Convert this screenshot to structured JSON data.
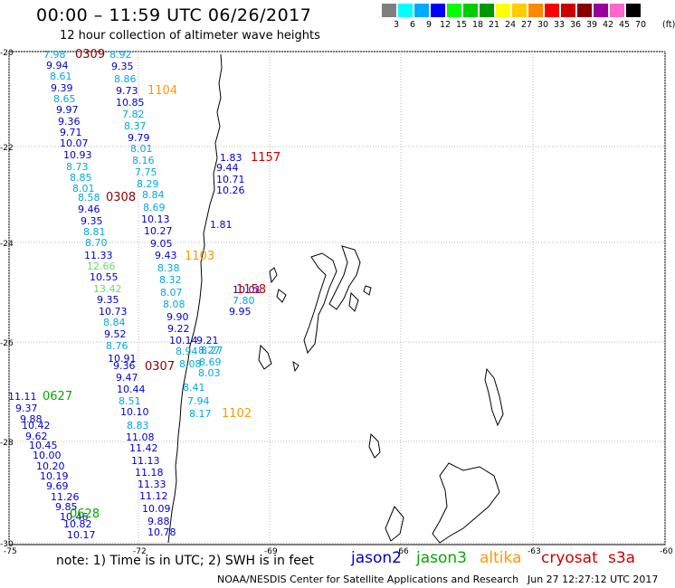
{
  "header": {
    "title": "00:00 – 11:59 UTC 06/26/2017",
    "subtitle": "12 hour collection of altimeter wave heights"
  },
  "legend": {
    "unit": "(ft)",
    "bins": [
      {
        "label": "3",
        "color": "#7f7f7f"
      },
      {
        "label": "6",
        "color": "#00ffff"
      },
      {
        "label": "9",
        "color": "#00aaff"
      },
      {
        "label": "12",
        "color": "#0000ff"
      },
      {
        "label": "15",
        "color": "#00ff00"
      },
      {
        "label": "18",
        "color": "#00cc00"
      },
      {
        "label": "21",
        "color": "#009900"
      },
      {
        "label": "24",
        "color": "#ffff00"
      },
      {
        "label": "27",
        "color": "#ffcc00"
      },
      {
        "label": "30",
        "color": "#ff8800"
      },
      {
        "label": "33",
        "color": "#ff0000"
      },
      {
        "label": "36",
        "color": "#cc0000"
      },
      {
        "label": "39",
        "color": "#880000"
      },
      {
        "label": "42",
        "color": "#990099"
      },
      {
        "label": "45",
        "color": "#ff66cc"
      },
      {
        "label": "70",
        "color": "#000000"
      }
    ]
  },
  "map": {
    "lat_ticks": [
      "-20",
      "-22",
      "-24",
      "-26",
      "-28",
      "-30"
    ],
    "lon_ticks": [
      "-75",
      "-72",
      "-69",
      "-66",
      "-63",
      "-60"
    ],
    "colors": {
      "jason2": "#0000cc",
      "altika_track": "#00aadd",
      "cryosat": "#cc0000",
      "altika": "#ff9900",
      "jason3": "#00aa00",
      "jason3_light": "#66dd66",
      "dark_red": "#880000"
    },
    "time_labels": [
      {
        "text": "0309",
        "color": "dark_red"
      },
      {
        "text": "1104",
        "color": "altika"
      },
      {
        "text": "1157",
        "color": "cryosat"
      },
      {
        "text": "0308",
        "color": "dark_red"
      },
      {
        "text": "1103",
        "color": "altika"
      },
      {
        "text": "1158",
        "color": "cryosat"
      },
      {
        "text": "0307",
        "color": "dark_red"
      },
      {
        "text": "0627",
        "color": "jason3"
      },
      {
        "text": "1102",
        "color": "altika"
      },
      {
        "text": "0628",
        "color": "jason3"
      }
    ],
    "track_A": [
      {
        "t": "7.98",
        "c": "altika_track"
      },
      {
        "t": "9.94",
        "c": "jason2"
      },
      {
        "t": "8.61",
        "c": "altika_track"
      },
      {
        "t": "9.39",
        "c": "jason2"
      },
      {
        "t": "8.65",
        "c": "altika_track"
      },
      {
        "t": "9.97",
        "c": "jason2"
      },
      {
        "t": "9.36",
        "c": "jason2"
      },
      {
        "t": "9.71",
        "c": "jason2"
      },
      {
        "t": "10.07",
        "c": "jason2"
      },
      {
        "t": "10.93",
        "c": "jason2"
      },
      {
        "t": "8.73",
        "c": "altika_track"
      },
      {
        "t": "8.85",
        "c": "altika_track"
      },
      {
        "t": "8.01",
        "c": "altika_track"
      },
      {
        "t": "8.58",
        "c": "altika_track"
      },
      {
        "t": "9.46",
        "c": "jason2"
      },
      {
        "t": "9.35",
        "c": "jason2"
      },
      {
        "t": "8.81",
        "c": "altika_track"
      },
      {
        "t": "8.70",
        "c": "altika_track"
      },
      {
        "t": "11.33",
        "c": "jason2"
      },
      {
        "t": "12.66",
        "c": "jason3_light"
      },
      {
        "t": "10.55",
        "c": "jason2"
      },
      {
        "t": "13.42",
        "c": "jason3_light"
      },
      {
        "t": "9.35",
        "c": "jason2"
      },
      {
        "t": "10.73",
        "c": "jason2"
      },
      {
        "t": "8.84",
        "c": "altika_track"
      },
      {
        "t": "9.52",
        "c": "jason2"
      },
      {
        "t": "8.76",
        "c": "altika_track"
      },
      {
        "t": "10.91",
        "c": "jason2"
      },
      {
        "t": "9.36",
        "c": "jason2"
      },
      {
        "t": "9.47",
        "c": "jason2"
      },
      {
        "t": "10.44",
        "c": "jason2"
      },
      {
        "t": "8.51",
        "c": "altika_track"
      },
      {
        "t": "10.10",
        "c": "jason2"
      },
      {
        "t": "8.83",
        "c": "altika_track"
      },
      {
        "t": "11.08",
        "c": "jason2"
      },
      {
        "t": "11.42",
        "c": "jason2"
      },
      {
        "t": "11.13",
        "c": "jason2"
      },
      {
        "t": "11.18",
        "c": "jason2"
      },
      {
        "t": "11.33",
        "c": "jason2"
      },
      {
        "t": "11.12",
        "c": "jason2"
      },
      {
        "t": "10.09",
        "c": "jason2"
      },
      {
        "t": "9.88",
        "c": "jason2"
      },
      {
        "t": "10.78",
        "c": "jason2"
      }
    ],
    "track_B": [
      {
        "t": "8.92",
        "c": "altika_track"
      },
      {
        "t": "9.35",
        "c": "jason2"
      },
      {
        "t": "8.86",
        "c": "altika_track"
      },
      {
        "t": "9.73",
        "c": "jason2"
      },
      {
        "t": "10.85",
        "c": "jason2"
      },
      {
        "t": "7.82",
        "c": "altika_track"
      },
      {
        "t": "8.37",
        "c": "altika_track"
      },
      {
        "t": "9.79",
        "c": "jason2"
      },
      {
        "t": "8.01",
        "c": "altika_track"
      },
      {
        "t": "8.16",
        "c": "altika_track"
      },
      {
        "t": "7.75",
        "c": "altika_track"
      },
      {
        "t": "8.29",
        "c": "altika_track"
      },
      {
        "t": "8.84",
        "c": "altika_track"
      },
      {
        "t": "8.69",
        "c": "altika_track"
      },
      {
        "t": "10.13",
        "c": "jason2"
      },
      {
        "t": "10.27",
        "c": "jason2"
      },
      {
        "t": "9.05",
        "c": "jason2"
      },
      {
        "t": "9.43",
        "c": "jason2"
      },
      {
        "t": "8.38",
        "c": "altika_track"
      },
      {
        "t": "8.32",
        "c": "altika_track"
      },
      {
        "t": "8.07",
        "c": "altika_track"
      },
      {
        "t": "8.08",
        "c": "altika_track"
      },
      {
        "t": "9.90",
        "c": "jason2"
      },
      {
        "t": "9.22",
        "c": "jason2"
      },
      {
        "t": "10.14",
        "c": "jason2"
      },
      {
        "t": "8.94",
        "c": "altika_track"
      },
      {
        "t": "8.08",
        "c": "altika_track"
      },
      {
        "t": "8.27",
        "c": "altika_track"
      },
      {
        "t": "8.41",
        "c": "altika_track"
      },
      {
        "t": "7.94",
        "c": "altika_track"
      },
      {
        "t": "8.17",
        "c": "altika_track"
      }
    ],
    "track_C": [
      {
        "t": "1.83",
        "c": "jason2"
      },
      {
        "t": "9.44",
        "c": "jason2"
      },
      {
        "t": "10.71",
        "c": "jason2"
      },
      {
        "t": "10.26",
        "c": "jason2"
      },
      {
        "t": "1.81",
        "c": "jason2"
      },
      {
        "t": "10.01",
        "c": "jason2"
      },
      {
        "t": "7.80",
        "c": "altika_track"
      },
      {
        "t": "9.95",
        "c": "jason2"
      },
      {
        "t": "9.21",
        "c": "jason2"
      },
      {
        "t": "8.27",
        "c": "altika_track"
      },
      {
        "t": "8.69",
        "c": "altika_track"
      },
      {
        "t": "8.03",
        "c": "altika_track"
      }
    ],
    "track_D": [
      {
        "t": "11.11",
        "c": "jason2"
      },
      {
        "t": "9.37",
        "c": "jason2"
      },
      {
        "t": "9.88",
        "c": "jason2"
      },
      {
        "t": "10.42",
        "c": "jason2"
      },
      {
        "t": "9.62",
        "c": "jason2"
      },
      {
        "t": "10.45",
        "c": "jason2"
      },
      {
        "t": "10.00",
        "c": "jason2"
      },
      {
        "t": "10.20",
        "c": "jason2"
      },
      {
        "t": "10.19",
        "c": "jason2"
      },
      {
        "t": "9.69",
        "c": "jason2"
      },
      {
        "t": "11.26",
        "c": "jason2"
      },
      {
        "t": "9.85",
        "c": "jason2"
      },
      {
        "t": "10.46",
        "c": "jason2"
      },
      {
        "t": "10.82",
        "c": "jason2"
      },
      {
        "t": "10.17",
        "c": "jason2"
      }
    ]
  },
  "footer": {
    "note": "note: 1) Time is in UTC; 2) SWH is in feet",
    "satellites": [
      {
        "name": "jason2",
        "color": "#0000cc"
      },
      {
        "name": "jason3",
        "color": "#00aa00"
      },
      {
        "name": "altika",
        "color": "#ff9900"
      },
      {
        "name": "cryosat",
        "color": "#cc0000"
      },
      {
        "name": "s3a",
        "color": "#cc0000"
      }
    ],
    "credit": "NOAA/NESDIS Center for Satellite Applications and Research",
    "timestamp": "Jun 27 12:27:12 UTC 2017"
  }
}
